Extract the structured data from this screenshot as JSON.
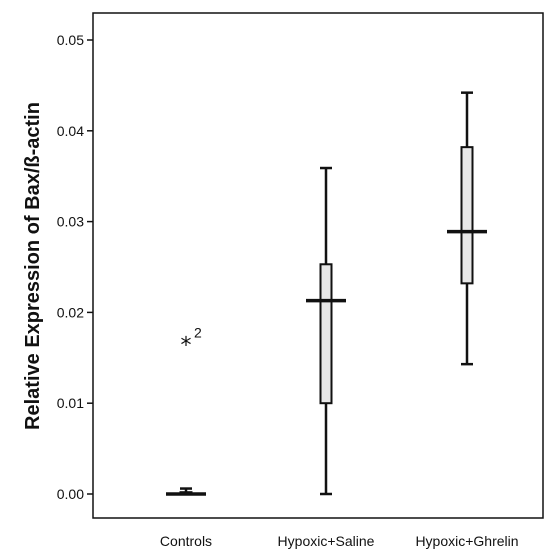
{
  "chart_data": {
    "type": "box",
    "title": "",
    "xlabel": "",
    "ylabel": "Relative Expression of Bax/ß-actin",
    "ylim": [
      0,
      0.05
    ],
    "yticks": [
      {
        "value": 0.0,
        "label": "0.00"
      },
      {
        "value": 0.01,
        "label": "0.01"
      },
      {
        "value": 0.02,
        "label": "0.02"
      },
      {
        "value": 0.03,
        "label": "0.03"
      },
      {
        "value": 0.04,
        "label": "0.04"
      },
      {
        "value": 0.05,
        "label": "0.05"
      }
    ],
    "grid": false,
    "categories": [
      "Controls",
      "Hypoxic+Saline",
      "Hypoxic+Ghrelin"
    ],
    "boxes": [
      {
        "category": "Controls",
        "min": 0.0,
        "q1": 0.0,
        "median": 0.0,
        "q3": 0.0002,
        "max": 0.0006
      },
      {
        "category": "Hypoxic+Saline",
        "min": 0.0,
        "q1": 0.01,
        "median": 0.0213,
        "q3": 0.0253,
        "max": 0.0359
      },
      {
        "category": "Hypoxic+Ghrelin",
        "min": 0.0143,
        "q1": 0.0232,
        "median": 0.0289,
        "q3": 0.0382,
        "max": 0.0442
      }
    ],
    "outliers": [
      {
        "category": "Controls",
        "value": 0.0168,
        "marker": "*",
        "label": "2"
      }
    ],
    "box_fill": "#e8e8e8",
    "line_color": "#111111"
  }
}
